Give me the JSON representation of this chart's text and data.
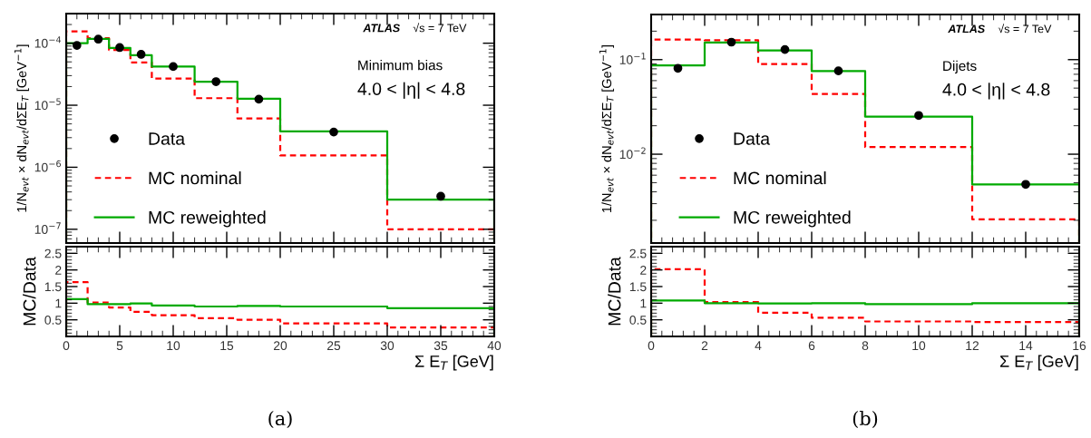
{
  "chart_data": [
    {
      "type": "histogram",
      "bins": [
        0,
        2,
        4,
        6,
        8,
        12,
        16,
        20,
        30,
        40
      ],
      "xlim": [
        0,
        40
      ],
      "xticks": [
        0,
        5,
        10,
        15,
        20,
        25,
        30,
        35,
        40
      ],
      "ylim": [
        6e-08,
        0.0003
      ],
      "log": "y",
      "yticks": [
        {
          "value": 1e-07,
          "label": "10$^{−7}$"
        },
        {
          "value": 1e-06,
          "label": "10$^{−6}$"
        },
        {
          "value": 1e-05,
          "label": "10$^{−5}$"
        },
        {
          "value": 0.0001,
          "label": "10$^{−4}$"
        }
      ],
      "ylabel": "1/N$_{evt}$ × dN$_{evt}$/dΣE$_{T}$ [GeV$^{−1}$]",
      "tick_labels": "y",
      "legend": "bottom left",
      "annotations": [
        "ATLAS",
        "√s = 7 TeV",
        "Minimum bias",
        "4.0 < |η| < 4.8"
      ],
      "series": [
        {
          "name": "Data",
          "type": "scatter",
          "marker": "circle",
          "color": "#000000",
          "x": [
            1,
            3,
            5,
            7,
            10,
            14,
            18,
            25,
            35
          ],
          "values": [
            9.2e-05,
            0.000116,
            8.5e-05,
            6.6e-05,
            4.2e-05,
            2.4e-05,
            1.25e-05,
            3.7e-06,
            3.4e-07
          ]
        },
        {
          "name": "MC nominal",
          "color": "#ff0000",
          "line_style": "dashed",
          "values": [
            0.000155,
            0.00012,
            7.8e-05,
            4.9e-05,
            2.7e-05,
            1.3e-05,
            6.1e-06,
            1.55e-06,
            1e-07
          ]
        },
        {
          "name": "MC reweighted",
          "color": "#00aa00",
          "line_style": "solid",
          "values": [
            0.0001,
            0.000117,
            8.4e-05,
            6.4e-05,
            4.2e-05,
            2.4e-05,
            1.27e-05,
            3.8e-06,
            3e-07
          ]
        }
      ]
    },
    {
      "type": "histogram",
      "bins": [
        0,
        2,
        4,
        6,
        8,
        12,
        16,
        20,
        30,
        40
      ],
      "xlim": [
        0,
        40
      ],
      "xticks": [
        0,
        5,
        10,
        15,
        20,
        25,
        30,
        35,
        40
      ],
      "ylim": [
        0,
        2.7
      ],
      "yticks": [
        0.5,
        1,
        1.5,
        2,
        2.5
      ],
      "xlabel": "Σ E$_{T}$ [GeV]",
      "ylabel": "MC/Data",
      "annotations": [
        "(a)"
      ],
      "series": [
        {
          "color": "#ff0000",
          "line_style": "dashed",
          "values": [
            1.63,
            1.02,
            0.87,
            0.74,
            0.64,
            0.55,
            0.5,
            0.39,
            0.27
          ]
        },
        {
          "color": "#00aa00",
          "line_style": "solid",
          "values": [
            1.12,
            0.97,
            0.97,
            0.99,
            0.93,
            0.9,
            0.92,
            0.9,
            0.85
          ]
        }
      ]
    },
    {
      "type": "histogram",
      "bins": [
        0,
        2,
        4,
        6,
        8,
        12,
        16
      ],
      "xlim": [
        0,
        16
      ],
      "xticks": [
        0,
        2,
        4,
        6,
        8,
        10,
        12,
        14,
        16
      ],
      "ylim": [
        0.00115,
        0.3
      ],
      "log": "y",
      "yticks": [
        {
          "value": 0.01,
          "label": "10$^{−2}$"
        },
        {
          "value": 0.1,
          "label": "10$^{−1}$"
        }
      ],
      "ylabel": "1/N$_{evt}$ × dN$_{evt}$/dΣE$_{T}$ [GeV$^{−1}$]",
      "tick_labels": "y",
      "legend": "bottom left",
      "annotations": [
        "ATLAS",
        "√s = 7 TeV",
        "Dijets",
        "4.0 < |η| < 4.8"
      ],
      "series": [
        {
          "name": "Data",
          "type": "scatter",
          "marker": "circle",
          "color": "#000000",
          "x": [
            1,
            3,
            5,
            7,
            10,
            14
          ],
          "values": [
            0.081,
            0.153,
            0.128,
            0.076,
            0.0257,
            0.0048
          ]
        },
        {
          "name": "MC nominal",
          "color": "#ff0000",
          "line_style": "dashed",
          "values": [
            0.163,
            0.16,
            0.09,
            0.0434,
            0.0119,
            0.00205
          ]
        },
        {
          "name": "MC reweighted",
          "color": "#00aa00",
          "line_style": "solid",
          "values": [
            0.087,
            0.152,
            0.125,
            0.0755,
            0.0249,
            0.0048
          ]
        }
      ]
    },
    {
      "type": "histogram",
      "bins": [
        0,
        2,
        4,
        6,
        8,
        12,
        16
      ],
      "xlim": [
        0,
        16
      ],
      "xticks": [
        0,
        2,
        4,
        6,
        8,
        10,
        12,
        14,
        16
      ],
      "ylim": [
        0,
        2.7
      ],
      "yticks": [
        0.5,
        1,
        1.5,
        2,
        2.5
      ],
      "xlabel": "Σ E$_{T}$ [GeV]",
      "ylabel": "MC/Data",
      "annotations": [
        "(b)"
      ],
      "series": [
        {
          "color": "#ff0000",
          "line_style": "dashed",
          "values": [
            2.02,
            1.03,
            0.71,
            0.56,
            0.45,
            0.43
          ]
        },
        {
          "color": "#00aa00",
          "line_style": "solid",
          "values": [
            1.08,
            1.0,
            0.99,
            1.0,
            0.97,
            1.0
          ]
        }
      ]
    }
  ]
}
